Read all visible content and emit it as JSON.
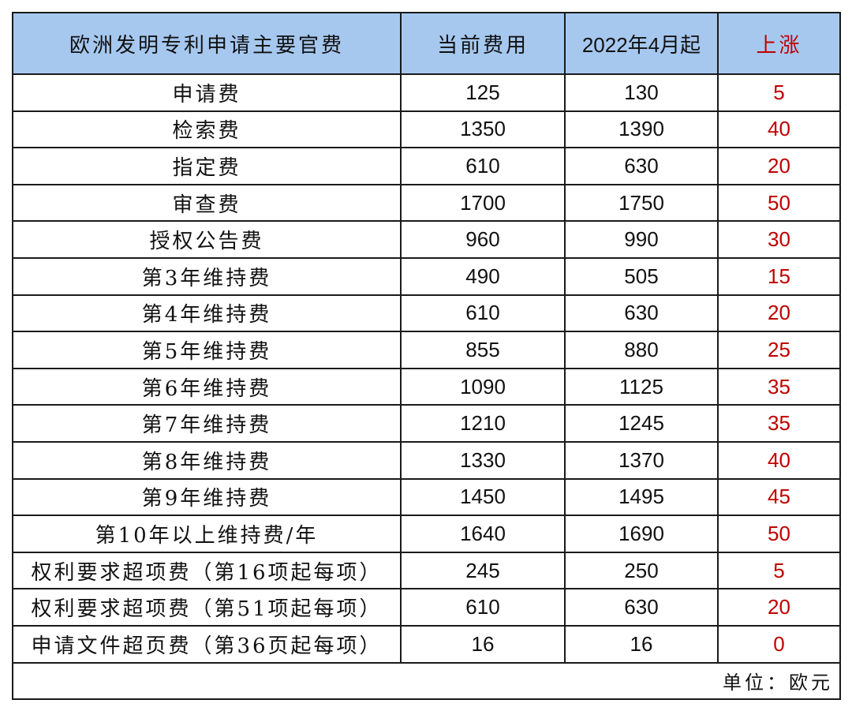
{
  "table": {
    "headers": {
      "item": "欧洲发明专利申请主要官费",
      "current": "当前费用",
      "from_april": "2022年4月起",
      "increase": "上涨"
    },
    "rows": [
      {
        "item": "申请费",
        "current": "125",
        "new": "130",
        "increase": "5"
      },
      {
        "item": "检索费",
        "current": "1350",
        "new": "1390",
        "increase": "40"
      },
      {
        "item": "指定费",
        "current": "610",
        "new": "630",
        "increase": "20"
      },
      {
        "item": "审查费",
        "current": "1700",
        "new": "1750",
        "increase": "50"
      },
      {
        "item": "授权公告费",
        "current": "960",
        "new": "990",
        "increase": "30"
      },
      {
        "item": "第3年维持费",
        "current": "490",
        "new": "505",
        "increase": "15"
      },
      {
        "item": "第4年维持费",
        "current": "610",
        "new": "630",
        "increase": "20"
      },
      {
        "item": "第5年维持费",
        "current": "855",
        "new": "880",
        "increase": "25"
      },
      {
        "item": "第6年维持费",
        "current": "1090",
        "new": "1125",
        "increase": "35"
      },
      {
        "item": "第7年维持费",
        "current": "1210",
        "new": "1245",
        "increase": "35"
      },
      {
        "item": "第8年维持费",
        "current": "1330",
        "new": "1370",
        "increase": "40"
      },
      {
        "item": "第9年维持费",
        "current": "1450",
        "new": "1495",
        "increase": "45"
      },
      {
        "item": "第10年以上维持费/年",
        "current": "1640",
        "new": "1690",
        "increase": "50"
      },
      {
        "item": "权利要求超项费（第16项起每项）",
        "current": "245",
        "new": "250",
        "increase": "5"
      },
      {
        "item": "权利要求超项费（第51项起每项）",
        "current": "610",
        "new": "630",
        "increase": "20"
      },
      {
        "item": "申请文件超页费（第36页起每项）",
        "current": "16",
        "new": "16",
        "increase": "0"
      }
    ],
    "unit_note": "单位：欧元"
  },
  "colors": {
    "header_bg": "#a6c8ef",
    "increase_text": "#c00000",
    "border": "#1a1a1a"
  }
}
